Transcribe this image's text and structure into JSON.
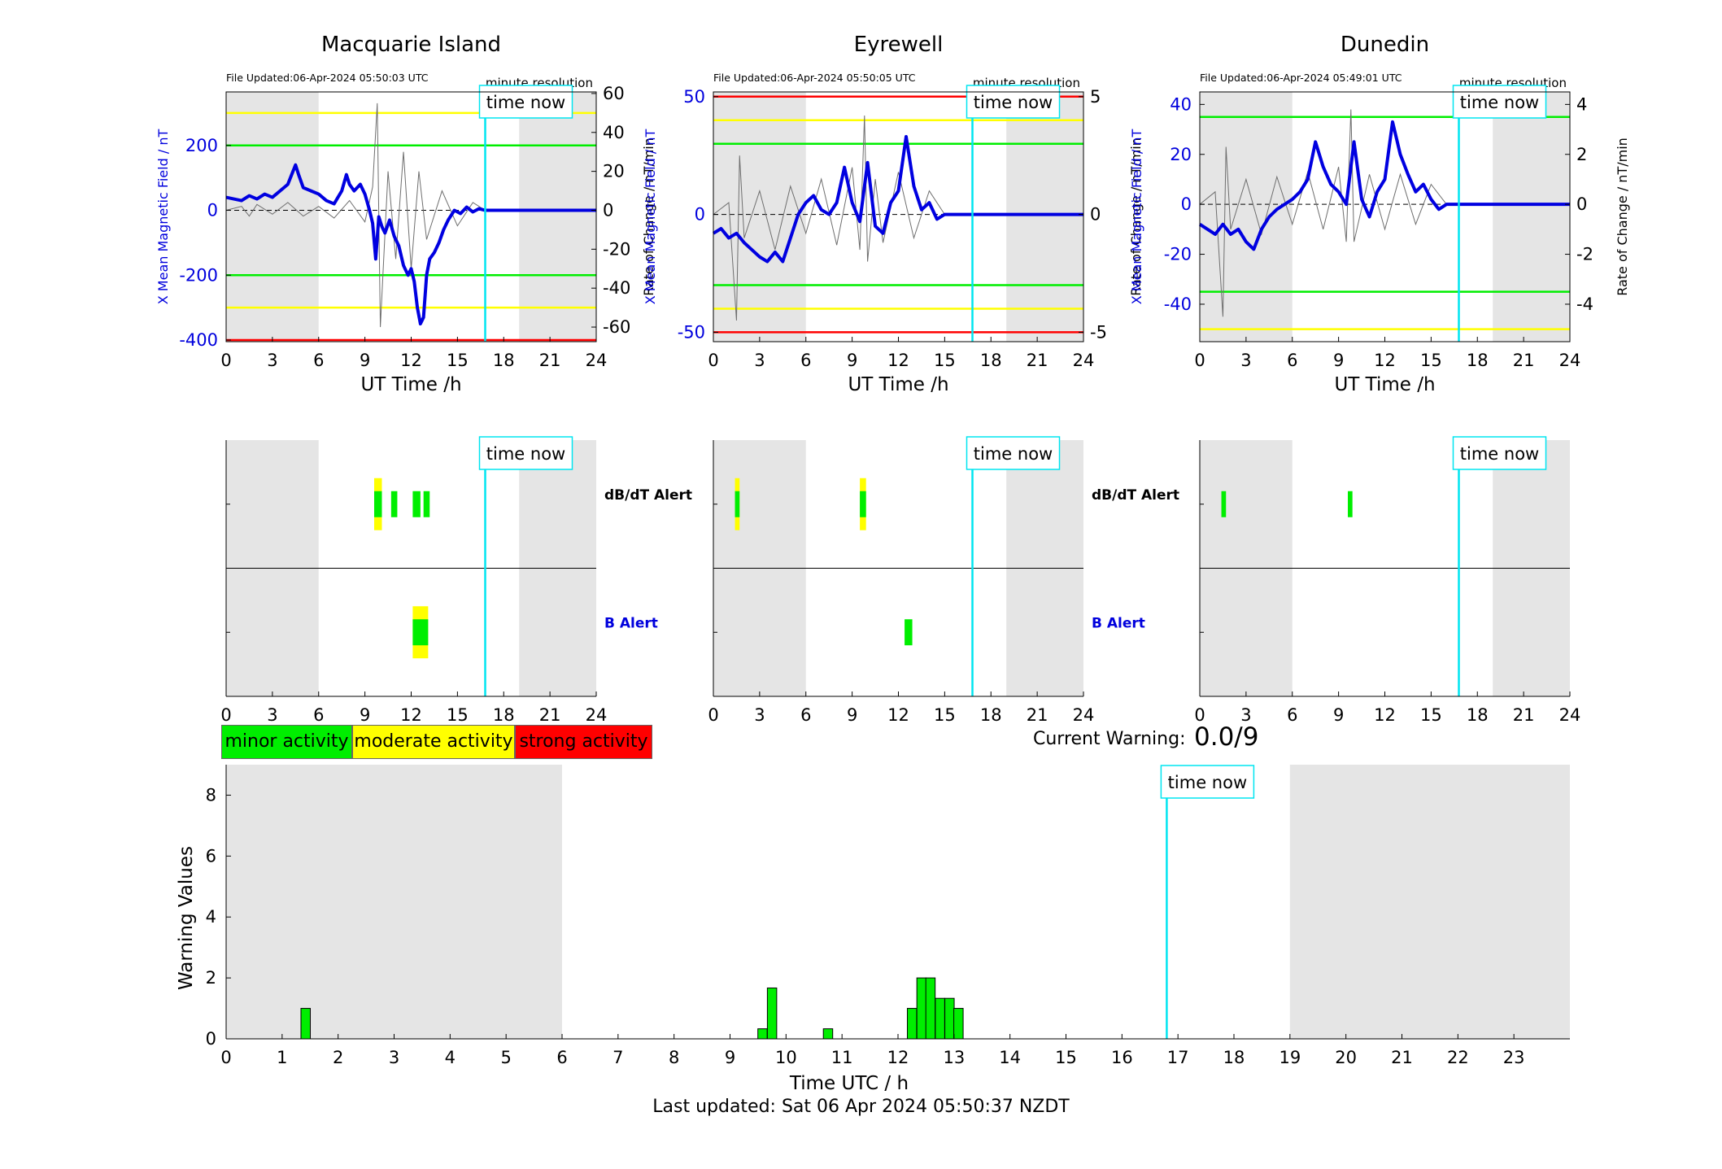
{
  "colors": {
    "grey_shade": "#e5e5e5",
    "time_now": "#00e5f0",
    "trace_blue": "#0000e0",
    "trace_gray": "#6e6e6e",
    "green": "#00ee00",
    "yellow": "#ffff00",
    "red": "#ff0000",
    "axis_blue": "#0000dd",
    "text": "#000000"
  },
  "legend": {
    "minor": "minor activity",
    "moderate": "moderate activity",
    "strong": "strong activity"
  },
  "current_warning": {
    "label": "Current Warning:",
    "value": "0.0/9"
  },
  "footer": {
    "last_updated": "Last updated: Sat 06 Apr 2024 05:50:37 NZDT"
  },
  "labels": {
    "time_now": "time now",
    "minute_resolution": "minute resolution",
    "ut_time": "UT Time /h",
    "left_axis": "X Mean Magnetic Field / nT",
    "right_axis": "Rate of Change / nT/min",
    "dbdt_alert": "dB/dT Alert",
    "b_alert": "B Alert"
  },
  "chart_data": [
    {
      "type": "line",
      "title": "Macquarie Island",
      "file_updated": "File Updated:06-Apr-2024 05:50:03 UTC",
      "xlabel": "UT Time /h",
      "ylabel": "X Mean Magnetic Field / nT",
      "ylabel_right": "Rate of Change / nT/min",
      "xlim": [
        0,
        24
      ],
      "ylim": [
        -405,
        365
      ],
      "ylim_right": [
        -67.5,
        60.8
      ],
      "x_ticks": [
        0,
        3,
        6,
        9,
        12,
        15,
        18,
        21,
        24
      ],
      "y_ticks": [
        -400,
        -200,
        0,
        200
      ],
      "y_ticks_right": [
        -60,
        -40,
        -20,
        0,
        20,
        40,
        60
      ],
      "shaded_x": [
        [
          0,
          6
        ],
        [
          19,
          24
        ]
      ],
      "time_now": 16.8,
      "thresholds": [
        {
          "level": "minor",
          "values": [
            200,
            -200
          ]
        },
        {
          "level": "moderate",
          "values": [
            300,
            -300
          ]
        },
        {
          "level": "strong",
          "values": [
            -400
          ]
        }
      ],
      "series": [
        {
          "name": "X Mean Magnetic Field",
          "axis": "left",
          "x": [
            0,
            0.5,
            1,
            1.5,
            2,
            2.5,
            3,
            3.5,
            4,
            4.5,
            4.7,
            5,
            5.5,
            6,
            6.5,
            7,
            7.5,
            7.8,
            8,
            8.3,
            8.7,
            9,
            9.3,
            9.5,
            9.7,
            9.9,
            10.1,
            10.3,
            10.6,
            10.9,
            11.2,
            11.5,
            11.8,
            12,
            12.2,
            12.4,
            12.6,
            12.8,
            13,
            13.2,
            13.5,
            13.8,
            14.1,
            14.4,
            14.8,
            15.2,
            15.6,
            16,
            16.4,
            16.8,
            24
          ],
          "values": [
            40,
            35,
            30,
            45,
            35,
            50,
            40,
            60,
            80,
            140,
            110,
            70,
            60,
            50,
            30,
            20,
            60,
            110,
            80,
            60,
            80,
            50,
            0,
            -40,
            -150,
            -20,
            -50,
            -70,
            -30,
            -80,
            -110,
            -170,
            -200,
            -180,
            -220,
            -300,
            -350,
            -330,
            -200,
            -150,
            -130,
            -100,
            -60,
            -30,
            0,
            -10,
            10,
            -5,
            5,
            0,
            0
          ]
        },
        {
          "name": "Rate of Change",
          "axis": "right",
          "x": [
            0,
            1,
            1.5,
            2,
            3,
            4,
            5,
            6,
            7,
            8,
            9,
            9.5,
            9.8,
            10,
            10.5,
            11,
            11.5,
            12,
            12.5,
            13,
            14,
            15,
            16,
            16.8
          ],
          "values": [
            0,
            2,
            -3,
            3,
            -2,
            4,
            -3,
            2,
            -4,
            5,
            -6,
            12,
            55,
            -60,
            20,
            -25,
            30,
            -30,
            20,
            -15,
            10,
            -8,
            4,
            0
          ]
        }
      ],
      "alerts": {
        "dbdt": [
          {
            "x": [
              9.6,
              10.1
            ],
            "level": "minor",
            "halo": "moderate"
          },
          {
            "x": [
              10.7,
              11.1
            ],
            "level": "minor"
          },
          {
            "x": [
              12.1,
              12.6
            ],
            "level": "minor"
          },
          {
            "x": [
              12.8,
              13.2
            ],
            "level": "minor"
          }
        ],
        "b": [
          {
            "x": [
              12.1,
              13.1
            ],
            "level": "minor",
            "halo": "moderate"
          }
        ]
      }
    },
    {
      "type": "line",
      "title": "Eyrewell",
      "file_updated": "File Updated:06-Apr-2024 05:50:05 UTC",
      "xlabel": "UT Time /h",
      "ylabel": "X Mean Magnetic Field / nT",
      "ylabel_right": "Rate of Change / nT/min",
      "xlim": [
        0,
        24
      ],
      "ylim": [
        -54,
        52
      ],
      "ylim_right": [
        -5.4,
        5.2
      ],
      "x_ticks": [
        0,
        3,
        6,
        9,
        12,
        15,
        18,
        21,
        24
      ],
      "y_ticks": [
        -50,
        0,
        50
      ],
      "y_ticks_right": [
        -5,
        0,
        5
      ],
      "shaded_x": [
        [
          0,
          6
        ],
        [
          19,
          24
        ]
      ],
      "time_now": 16.8,
      "thresholds": [
        {
          "level": "strong",
          "values": [
            50,
            -50
          ]
        },
        {
          "level": "moderate",
          "values": [
            40,
            -40
          ]
        },
        {
          "level": "minor",
          "values": [
            30,
            -30
          ]
        }
      ],
      "series": [
        {
          "name": "X Mean Magnetic Field",
          "axis": "left",
          "x": [
            0,
            0.5,
            1,
            1.5,
            2,
            2.5,
            3,
            3.5,
            4,
            4.5,
            5,
            5.5,
            6,
            6.5,
            7,
            7.5,
            8,
            8.5,
            9,
            9.5,
            10,
            10.5,
            11,
            11.5,
            12,
            12.5,
            13,
            13.5,
            14,
            14.5,
            15,
            16.8,
            24
          ],
          "values": [
            -8,
            -6,
            -10,
            -8,
            -12,
            -15,
            -18,
            -20,
            -16,
            -20,
            -10,
            0,
            5,
            8,
            2,
            0,
            5,
            20,
            5,
            -3,
            22,
            -5,
            -8,
            5,
            10,
            33,
            12,
            2,
            5,
            -2,
            0,
            0,
            0
          ]
        },
        {
          "name": "Rate of Change",
          "axis": "right",
          "x": [
            0,
            1,
            1.5,
            1.7,
            2,
            3,
            4,
            5,
            6,
            7,
            8,
            9,
            9.5,
            9.8,
            10,
            10.5,
            11,
            12,
            13,
            14,
            15
          ],
          "values": [
            0,
            0.5,
            -4.5,
            2.5,
            -1,
            1,
            -1.5,
            1.2,
            -0.8,
            1.5,
            -1.3,
            2,
            -1.5,
            4.2,
            -2,
            1.5,
            -1.2,
            1.8,
            -1,
            1,
            0
          ]
        }
      ],
      "alerts": {
        "dbdt": [
          {
            "x": [
              1.4,
              1.7
            ],
            "level": "minor",
            "halo": "moderate"
          },
          {
            "x": [
              9.5,
              9.9
            ],
            "level": "minor",
            "halo": "moderate"
          }
        ],
        "b": [
          {
            "x": [
              12.4,
              12.9
            ],
            "level": "minor"
          }
        ]
      }
    },
    {
      "type": "line",
      "title": "Dunedin",
      "file_updated": "File Updated:06-Apr-2024 05:49:01 UTC",
      "xlabel": "UT Time /h",
      "ylabel": "X Mean Magnetic Field / nT",
      "ylabel_right": "Rate of Change / nT/min",
      "xlim": [
        0,
        24
      ],
      "ylim": [
        -55,
        45
      ],
      "ylim_right": [
        -5.5,
        4.5
      ],
      "x_ticks": [
        0,
        3,
        6,
        9,
        12,
        15,
        18,
        21,
        24
      ],
      "y_ticks": [
        -40,
        -20,
        0,
        20,
        40
      ],
      "y_ticks_right": [
        -4,
        -2,
        0,
        2,
        4
      ],
      "shaded_x": [
        [
          0,
          6
        ],
        [
          19,
          24
        ]
      ],
      "time_now": 16.8,
      "thresholds": [
        {
          "level": "minor",
          "values": [
            35,
            -35
          ]
        },
        {
          "level": "moderate",
          "values": [
            -50
          ]
        }
      ],
      "series": [
        {
          "name": "X Mean Magnetic Field",
          "axis": "left",
          "x": [
            0,
            0.5,
            1,
            1.5,
            2,
            2.5,
            3,
            3.5,
            4,
            4.5,
            5,
            5.5,
            6,
            6.5,
            7,
            7.5,
            8,
            8.5,
            9,
            9.5,
            10,
            10.5,
            11,
            11.5,
            12,
            12.5,
            13,
            13.5,
            14,
            14.5,
            15,
            15.5,
            16,
            16.8,
            24
          ],
          "values": [
            -8,
            -10,
            -12,
            -8,
            -12,
            -10,
            -15,
            -18,
            -10,
            -5,
            -2,
            0,
            2,
            5,
            10,
            25,
            15,
            8,
            5,
            0,
            25,
            2,
            -5,
            5,
            10,
            33,
            20,
            12,
            5,
            8,
            2,
            -2,
            0,
            0,
            0
          ]
        },
        {
          "name": "Rate of Change",
          "axis": "right",
          "x": [
            0,
            1,
            1.5,
            1.7,
            2,
            3,
            4,
            5,
            6,
            7,
            8,
            9,
            9.5,
            9.8,
            10,
            11,
            12,
            13,
            14,
            15,
            16
          ],
          "values": [
            0,
            0.5,
            -4.5,
            2.3,
            -1,
            1,
            -1.2,
            1.1,
            -0.8,
            1.3,
            -1,
            1.5,
            -1.5,
            3.8,
            -1.5,
            1.2,
            -1,
            1.2,
            -0.8,
            0.8,
            0
          ]
        }
      ],
      "alerts": {
        "dbdt": [
          {
            "x": [
              1.4,
              1.7
            ],
            "level": "minor"
          },
          {
            "x": [
              9.6,
              9.9
            ],
            "level": "minor"
          }
        ],
        "b": []
      }
    },
    {
      "type": "bar",
      "xlabel": "Time UTC / h",
      "ylabel": "Warning Values",
      "xlim": [
        0,
        24
      ],
      "ylim": [
        0,
        9
      ],
      "x_ticks": [
        0,
        1,
        2,
        3,
        4,
        5,
        6,
        7,
        8,
        9,
        10,
        11,
        12,
        13,
        14,
        15,
        16,
        17,
        18,
        19,
        20,
        21,
        22,
        23
      ],
      "y_ticks": [
        0,
        2,
        4,
        6,
        8
      ],
      "shaded_x": [
        [
          0,
          6
        ],
        [
          19,
          24
        ]
      ],
      "time_now": 16.8,
      "bar_width_h": 0.1667,
      "x": [
        1.42,
        9.58,
        9.75,
        10.75,
        12.25,
        12.42,
        12.58,
        12.75,
        12.92,
        13.08
      ],
      "values": [
        1,
        0.33,
        1.67,
        0.33,
        1,
        2,
        2,
        1.33,
        1.33,
        1
      ]
    }
  ]
}
